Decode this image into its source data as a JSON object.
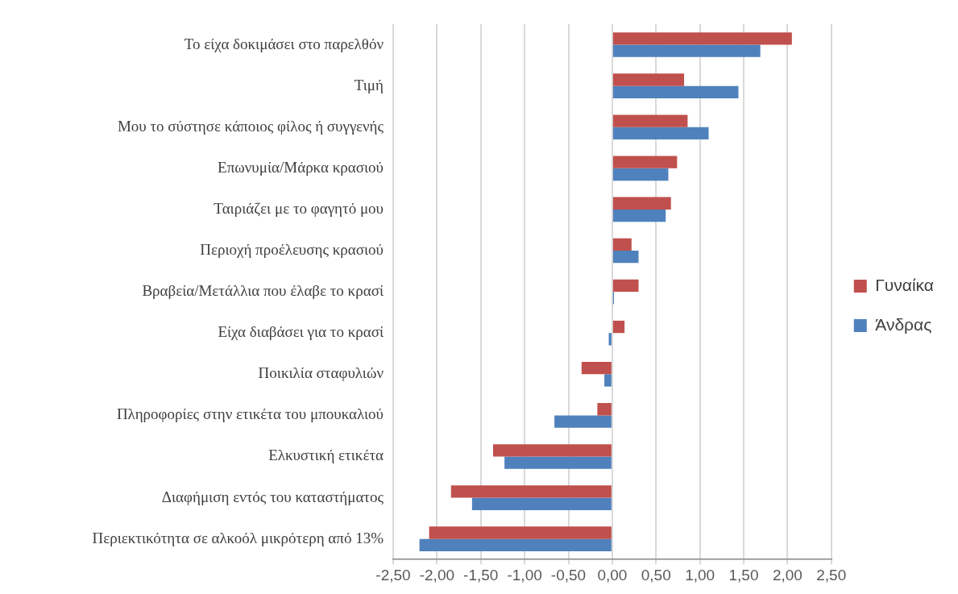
{
  "chart_data": {
    "type": "bar",
    "orientation": "horizontal",
    "categories": [
      "Το είχα δοκιμάσει στο παρελθόν",
      "Τιμή",
      "Μου το σύστησε κάποιος φίλος ή συγγενής",
      "Επωνυμία/Μάρκα κρασιού",
      "Ταιριάζει με το φαγητό μου",
      "Περιοχή προέλευσης κρασιού",
      "Βραβεία/Μετάλλια που έλαβε το κρασί",
      "Είχα διαβάσει για το κρασί",
      "Ποικιλία σταφυλιών",
      "Πληροφορίες στην ετικέτα του μπουκαλιού",
      "Ελκυστική ετικέτα",
      "Διαφήμιση εντός του καταστήματος",
      "Περιεκτικότητα σε αλκοόλ μικρότερη από 13%"
    ],
    "series": [
      {
        "name": "Γυναίκα",
        "color": "#c0504d",
        "values": [
          2.05,
          0.82,
          0.86,
          0.74,
          0.67,
          0.22,
          0.3,
          0.14,
          -0.35,
          -0.17,
          -1.36,
          -1.84,
          -2.09
        ]
      },
      {
        "name": "Άνδρας",
        "color": "#4f81bd",
        "values": [
          1.69,
          1.44,
          1.1,
          0.64,
          0.61,
          0.3,
          0.02,
          -0.04,
          -0.09,
          -0.66,
          -1.23,
          -1.6,
          -2.2
        ]
      }
    ],
    "xlim": [
      -2.5,
      2.5
    ],
    "xticks": [
      {
        "value": -2.5,
        "label": "-2,50"
      },
      {
        "value": -2,
        "label": "-2,00"
      },
      {
        "value": -1.5,
        "label": "-1,50"
      },
      {
        "value": -1,
        "label": "-1,00"
      },
      {
        "value": -0.5,
        "label": "-0,50"
      },
      {
        "value": 0,
        "label": "0,00"
      },
      {
        "value": 0.5,
        "label": "0,50"
      },
      {
        "value": 1,
        "label": "1,00"
      },
      {
        "value": 1.5,
        "label": "1,50"
      },
      {
        "value": 2,
        "label": "2,00"
      },
      {
        "value": 2.5,
        "label": "2,50"
      }
    ],
    "grid": "x",
    "legend": "right"
  }
}
